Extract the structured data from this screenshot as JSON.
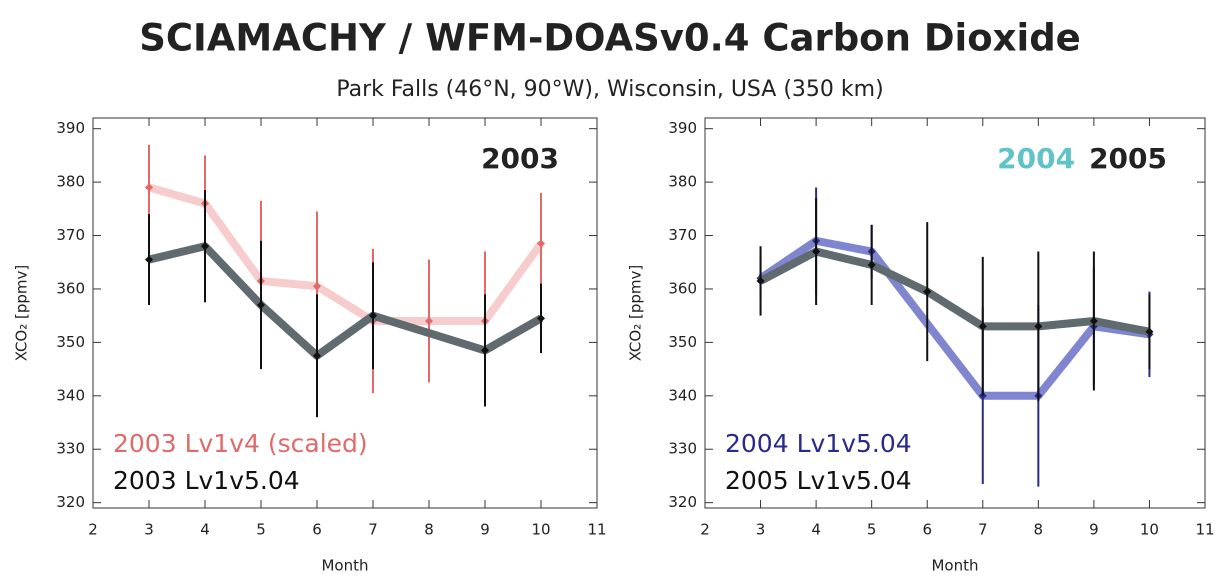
{
  "title": "SCIAMACHY / WFM-DOASv0.4 Carbon Dioxide",
  "subtitle": "Park Falls (46°N, 90°W), Wisconsin, USA (350 km)",
  "chart_data": [
    {
      "type": "line",
      "xlabel": "Month",
      "ylabel": "XCO₂ [ppmv]",
      "annotations": [
        {
          "text": "2003",
          "color": "#222222"
        }
      ],
      "xlim": [
        2,
        11
      ],
      "xticks": [
        2,
        3,
        4,
        5,
        6,
        7,
        8,
        9,
        10,
        11
      ],
      "ylim": [
        319,
        392
      ],
      "yticks": [
        320,
        330,
        340,
        350,
        360,
        370,
        380,
        390
      ],
      "series": [
        {
          "name": "2003 Lv1v4 (scaled)",
          "color": "#e06a6a",
          "line_color": "#f6cccc",
          "x": [
            3,
            4,
            5,
            6,
            7,
            8,
            9,
            10
          ],
          "values": [
            379,
            376,
            361.5,
            360.5,
            354,
            354,
            354,
            368.5
          ],
          "errors": [
            8,
            9,
            15,
            14,
            13.5,
            11.5,
            13,
            9.5
          ]
        },
        {
          "name": "2003 Lv1v5.04",
          "color": "#111111",
          "line_color": "#5f6b6e",
          "x": [
            3,
            4,
            5,
            6,
            7,
            9,
            10
          ],
          "values": [
            365.5,
            368,
            357,
            347.5,
            355,
            348.5,
            354.5
          ],
          "errors": [
            8.5,
            10.5,
            12,
            11.5,
            10,
            10.5,
            6.5
          ]
        }
      ]
    },
    {
      "type": "line",
      "xlabel": "Month",
      "ylabel": "XCO₂ [ppmv]",
      "annotations": [
        {
          "text": "2004",
          "color": "#5fc3c8"
        },
        {
          "text": "2005",
          "color": "#222222"
        }
      ],
      "xlim": [
        2,
        11
      ],
      "xticks": [
        2,
        3,
        4,
        5,
        6,
        7,
        8,
        9,
        10,
        11
      ],
      "ylim": [
        319,
        392
      ],
      "yticks": [
        320,
        330,
        340,
        350,
        360,
        370,
        380,
        390
      ],
      "series": [
        {
          "name": "2004 Lv1v5.04",
          "color": "#2a2a8a",
          "line_color": "#7f86cf",
          "x": [
            3,
            4,
            5,
            7,
            8,
            9,
            10
          ],
          "values": [
            362,
            369,
            367,
            340,
            340,
            353,
            351.5
          ],
          "errors": [
            4,
            10,
            5,
            16.5,
            17,
            11,
            8
          ]
        },
        {
          "name": "2005 Lv1v5.04",
          "color": "#111111",
          "line_color": "#5f6b6e",
          "x": [
            3,
            4,
            5,
            6,
            7,
            8,
            9,
            10
          ],
          "values": [
            361.5,
            367,
            364.5,
            359.5,
            353,
            353,
            354,
            352
          ],
          "errors": [
            6.5,
            10,
            7.5,
            13,
            13,
            14,
            13,
            7
          ]
        }
      ]
    }
  ]
}
